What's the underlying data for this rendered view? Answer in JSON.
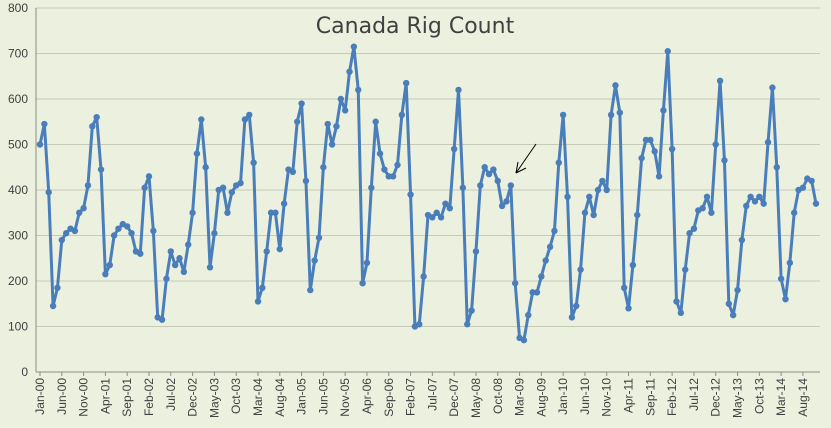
{
  "chart_data": {
    "type": "line",
    "title": "Canada Rig Count",
    "xlabel": "",
    "ylabel": "",
    "ylim": [
      0,
      800
    ],
    "yticks": [
      0,
      100,
      200,
      300,
      400,
      500,
      600,
      700,
      800
    ],
    "grid": true,
    "legend": "none",
    "x_tick_labels": [
      "Jan-00",
      "Jun-00",
      "Nov-00",
      "Apr-01",
      "Sep-01",
      "Feb-02",
      "Jul-02",
      "Dec-02",
      "May-03",
      "Oct-03",
      "Mar-04",
      "Aug-04",
      "Jan-05",
      "Jun-05",
      "Nov-05",
      "Apr-06",
      "Sep-06",
      "Feb-07",
      "Jul-07",
      "Dec-07",
      "May-08",
      "Oct-08",
      "Mar-09",
      "Aug-09",
      "Jan-10",
      "Jun-10",
      "Nov-10",
      "Apr-11",
      "Sep-11",
      "Feb-12",
      "Jul-12",
      "Dec-12",
      "May-13",
      "Oct-13",
      "Mar-14",
      "Aug-14"
    ],
    "x_start": "2000-01",
    "x_interval_months": 1,
    "series": [
      {
        "color": "#4a7ebb",
        "values": [
          500,
          545,
          395,
          145,
          185,
          290,
          305,
          315,
          310,
          350,
          360,
          410,
          540,
          560,
          445,
          215,
          235,
          300,
          315,
          325,
          320,
          305,
          265,
          260,
          405,
          430,
          310,
          120,
          115,
          205,
          265,
          235,
          250,
          220,
          280,
          350,
          480,
          555,
          450,
          230,
          305,
          400,
          405,
          350,
          395,
          410,
          415,
          555,
          565,
          460,
          155,
          185,
          265,
          350,
          350,
          270,
          370,
          445,
          440,
          550,
          590,
          420,
          180,
          245,
          295,
          450,
          545,
          500,
          540,
          600,
          575,
          660,
          715,
          620,
          195,
          240,
          405,
          550,
          480,
          445,
          430,
          430,
          455,
          565,
          635,
          390,
          100,
          105,
          210,
          345,
          340,
          350,
          340,
          370,
          360,
          490,
          620,
          405,
          105,
          135,
          265,
          410,
          450,
          435,
          445,
          420,
          365,
          375,
          410,
          195,
          75,
          70,
          125,
          175,
          175,
          210,
          245,
          275,
          310,
          460,
          565,
          385,
          120,
          145,
          225,
          350,
          385,
          345,
          400,
          420,
          400,
          565,
          630,
          570,
          185,
          140,
          235,
          345,
          470,
          510,
          510,
          485,
          430,
          575,
          705,
          490,
          155,
          130,
          225,
          305,
          315,
          355,
          360,
          385,
          350,
          500,
          640,
          465,
          150,
          125,
          180,
          290,
          365,
          385,
          375,
          385,
          370,
          505,
          625,
          450,
          205,
          160,
          240,
          350,
          400,
          405,
          425,
          420,
          370
        ]
      }
    ],
    "annotation": "arrow"
  }
}
